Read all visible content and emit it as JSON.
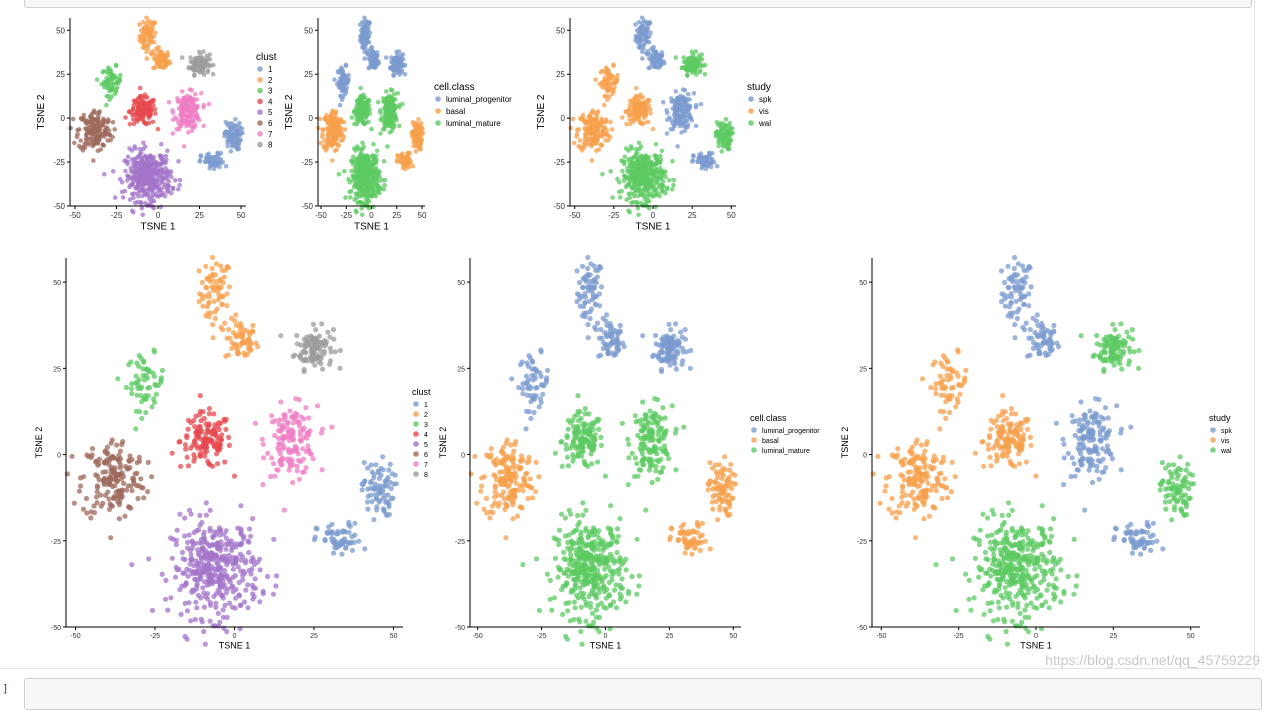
{
  "notebook": {
    "prompt_label": "]",
    "watermark": "https://blog.csdn.net/qq_45759229"
  },
  "palette": {
    "clust": {
      "1": "#7b9bcf",
      "2": "#f7a04c",
      "3": "#5cca61",
      "4": "#e5484d",
      "5": "#a374c9",
      "6": "#9e6a5c",
      "7": "#ef7ec4",
      "8": "#9c9c9c"
    },
    "cell.class": {
      "luminal_progenitor": "#7b9bcf",
      "basal": "#f7a04c",
      "luminal_mature": "#5cca61"
    },
    "study": {
      "spk": "#7b9bcf",
      "vis": "#f7a04c",
      "wal": "#5cca61"
    }
  },
  "chart_data": [
    {
      "type": "scatter",
      "xlabel": "TSNE 1",
      "ylabel": "TSNE 2",
      "xlim": [
        -53,
        53
      ],
      "ylim": [
        -50,
        57
      ],
      "xticks": [
        -50,
        -25,
        0,
        25,
        50
      ],
      "yticks": [
        -50,
        -25,
        0,
        25,
        50
      ],
      "legend": {
        "title": "clust",
        "placement": "right",
        "entries": [
          "1",
          "2",
          "3",
          "4",
          "5",
          "6",
          "7",
          "8"
        ]
      },
      "color_by": "clust"
    },
    {
      "type": "scatter",
      "xlabel": "TSNE 1",
      "ylabel": "TSNE 2",
      "xlim": [
        -53,
        53
      ],
      "ylim": [
        -50,
        57
      ],
      "xticks": [
        -50,
        -25,
        0,
        25,
        50
      ],
      "yticks": [
        -50,
        -25,
        0,
        25,
        50
      ],
      "legend": {
        "title": "cell.class",
        "placement": "right",
        "entries": [
          "luminal_progenitor",
          "basal",
          "luminal_mature"
        ]
      },
      "color_by": "cell.class"
    },
    {
      "type": "scatter",
      "xlabel": "TSNE 1",
      "ylabel": "TSNE 2",
      "xlim": [
        -53,
        53
      ],
      "ylim": [
        -50,
        57
      ],
      "xticks": [
        -50,
        -25,
        0,
        25,
        50
      ],
      "yticks": [
        -50,
        -25,
        0,
        25,
        50
      ],
      "legend": {
        "title": "study",
        "placement": "right",
        "entries": [
          "spk",
          "vis",
          "wal"
        ]
      },
      "color_by": "study"
    },
    {
      "type": "scatter",
      "xlabel": "TSNE 1",
      "ylabel": "TSNE 2",
      "xlim": [
        -53,
        53
      ],
      "ylim": [
        -50,
        57
      ],
      "xticks": [
        -50,
        -25,
        0,
        25,
        50
      ],
      "yticks": [
        -50,
        -25,
        0,
        25,
        50
      ],
      "legend": {
        "title": "clust",
        "placement": "right",
        "entries": [
          "1",
          "2",
          "3",
          "4",
          "5",
          "6",
          "7",
          "8"
        ]
      },
      "color_by": "clust"
    },
    {
      "type": "scatter",
      "xlabel": "TSNE 1",
      "ylabel": "TSNE 2",
      "xlim": [
        -53,
        53
      ],
      "ylim": [
        -50,
        57
      ],
      "xticks": [
        -50,
        -25,
        0,
        25,
        50
      ],
      "yticks": [
        -50,
        -25,
        0,
        25,
        50
      ],
      "legend": {
        "title": "cell.class",
        "placement": "right",
        "entries": [
          "luminal_progenitor",
          "basal",
          "luminal_mature"
        ]
      },
      "color_by": "cell.class"
    },
    {
      "type": "scatter",
      "xlabel": "TSNE 1",
      "ylabel": "TSNE 2",
      "xlim": [
        -53,
        53
      ],
      "ylim": [
        -50,
        57
      ],
      "xticks": [
        -50,
        -25,
        0,
        25,
        50
      ],
      "yticks": [
        -50,
        -25,
        0,
        25,
        50
      ],
      "legend": {
        "title": "study",
        "placement": "right",
        "entries": [
          "spk",
          "vis",
          "wal"
        ]
      },
      "color_by": "study"
    }
  ],
  "clusters": [
    {
      "cx": -6,
      "cy": 47,
      "sx": 2.5,
      "sy": 5,
      "n": 70,
      "clust": "2",
      "cell.class": "luminal_progenitor",
      "study": "spk"
    },
    {
      "cx": 2,
      "cy": 33,
      "sx": 2.5,
      "sy": 3,
      "n": 60,
      "clust": "2",
      "cell.class": "luminal_progenitor",
      "study": "spk"
    },
    {
      "cx": 25,
      "cy": 31,
      "sx": 3,
      "sy": 3,
      "n": 110,
      "clust": "8",
      "cell.class": "luminal_progenitor",
      "study": "wal"
    },
    {
      "cx": -28,
      "cy": 21,
      "sx": 3,
      "sy": 4,
      "n": 60,
      "clust": "3",
      "cell.class": "luminal_progenitor",
      "study": "vis"
    },
    {
      "cx": -9,
      "cy": 4,
      "sx": 4,
      "sy": 4,
      "n": 130,
      "clust": "4",
      "cell.class": "luminal_mature",
      "study": "vis"
    },
    {
      "cx": 18,
      "cy": 4,
      "sx": 4,
      "sy": 5,
      "n": 150,
      "clust": "7",
      "cell.class": "luminal_mature",
      "study": "spk"
    },
    {
      "cx": -38,
      "cy": -7,
      "sx": 5,
      "sy": 6,
      "n": 170,
      "clust": "6",
      "cell.class": "basal",
      "study": "vis"
    },
    {
      "cx": 45,
      "cy": -10,
      "sx": 2.5,
      "sy": 4,
      "n": 80,
      "clust": "1",
      "cell.class": "basal",
      "study": "wal"
    },
    {
      "cx": 33,
      "cy": -25,
      "sx": 3.5,
      "sy": 2.5,
      "n": 60,
      "clust": "1",
      "cell.class": "basal",
      "study": "spk"
    },
    {
      "cx": -6,
      "cy": -33,
      "sx": 7,
      "sy": 7,
      "n": 380,
      "clust": "5",
      "cell.class": "luminal_mature",
      "study": "wal"
    }
  ]
}
